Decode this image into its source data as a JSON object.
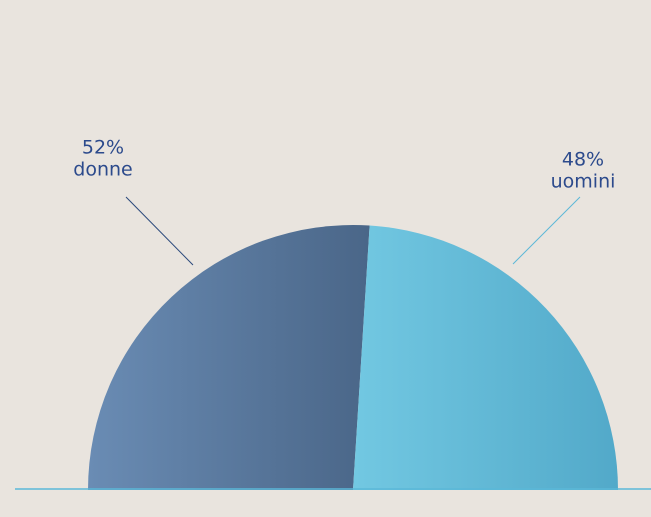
{
  "chart_data": {
    "type": "pie",
    "semicircle": true,
    "categories": [
      "donne",
      "uomini"
    ],
    "values": [
      52,
      48
    ],
    "value_labels": [
      "52%",
      "48%"
    ],
    "colors": [
      [
        "#6a8cb4",
        "#4a6688"
      ],
      [
        "#72c8e2",
        "#52a9c9"
      ]
    ],
    "baseline_color": "#5bb8d8"
  }
}
